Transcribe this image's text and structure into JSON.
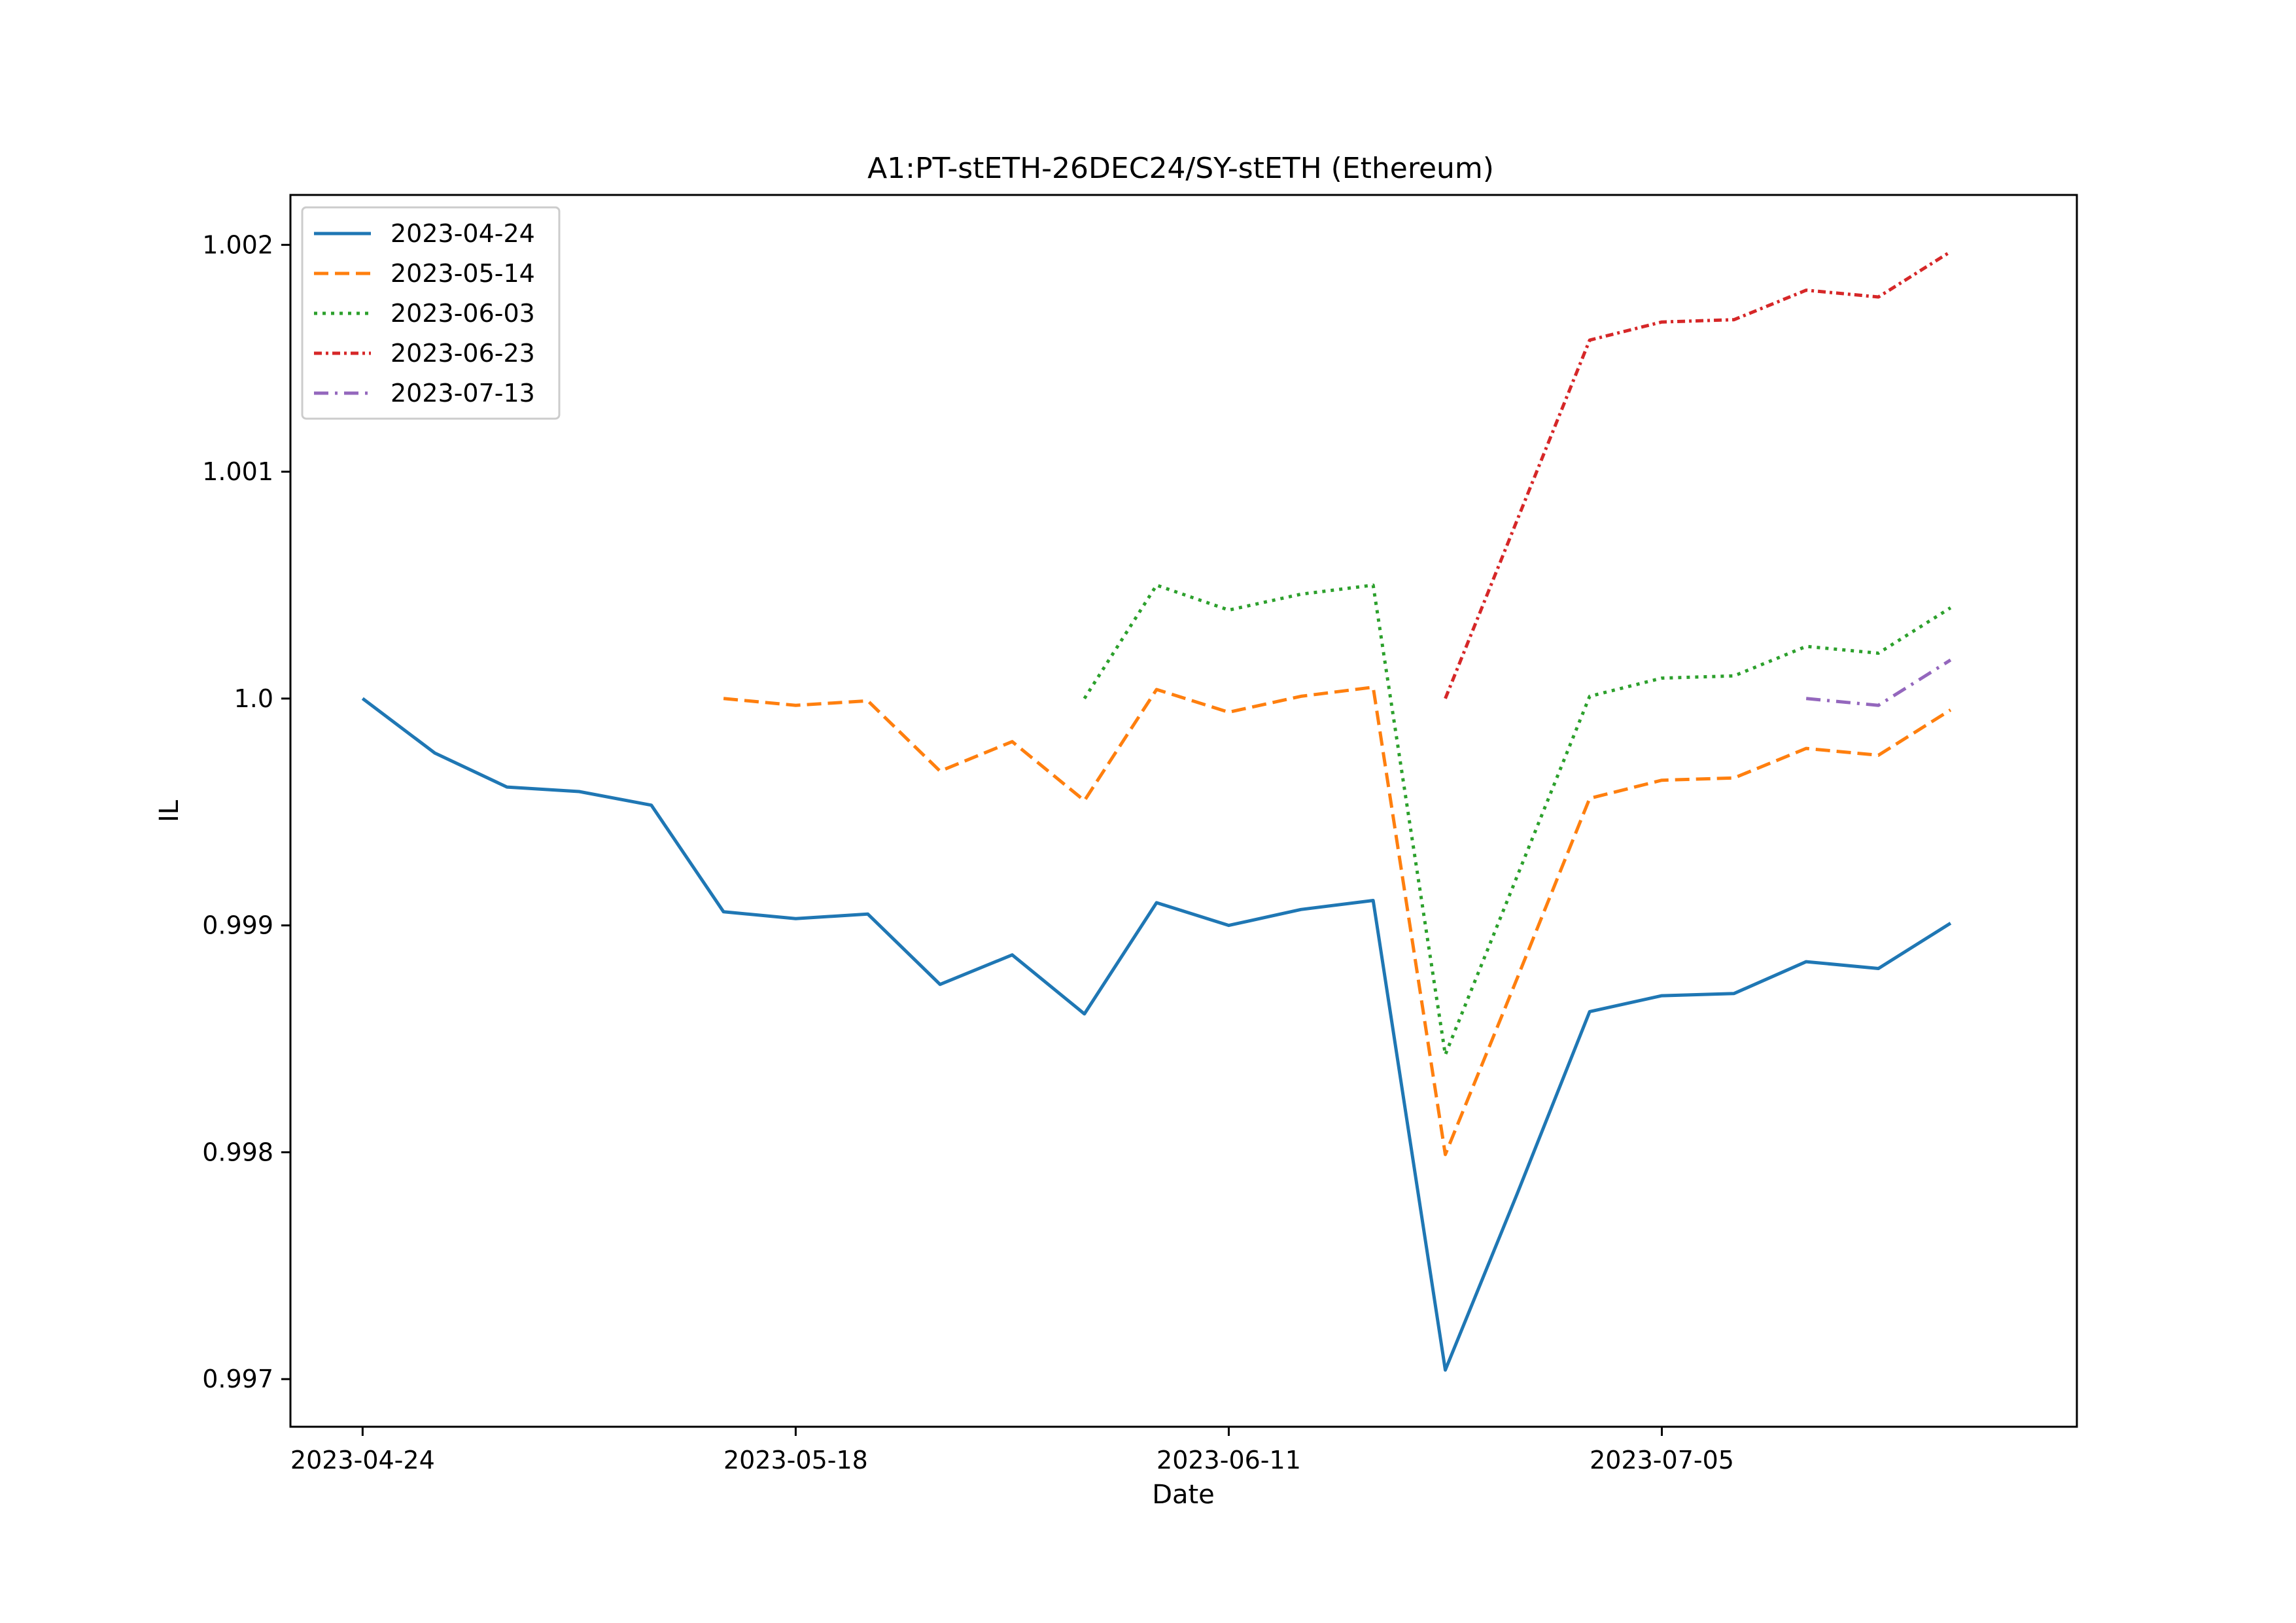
{
  "chart_data": {
    "type": "line",
    "title": "A1:PT-stETH-26DEC24/SY-stETH (Ethereum)",
    "xlabel": "Date",
    "ylabel": "IL",
    "x_dates": [
      "2023-04-24",
      "2023-04-28",
      "2023-05-02",
      "2023-05-06",
      "2023-05-10",
      "2023-05-14",
      "2023-05-18",
      "2023-05-22",
      "2023-05-26",
      "2023-05-30",
      "2023-06-03",
      "2023-06-07",
      "2023-06-11",
      "2023-06-15",
      "2023-06-19",
      "2023-06-23",
      "2023-06-27",
      "2023-07-01",
      "2023-07-05",
      "2023-07-09",
      "2023-07-13",
      "2023-07-17",
      "2023-07-21"
    ],
    "x_ticks": [
      "2023-04-24",
      "2023-05-18",
      "2023-06-11",
      "2023-07-05"
    ],
    "xlim": [
      "2023-04-20",
      "2023-07-28"
    ],
    "ylim": [
      0.99679,
      1.00222
    ],
    "y_ticks": [
      0.997,
      0.998,
      0.999,
      1.0,
      1.001,
      1.002
    ],
    "y_tick_labels": [
      "0.997",
      "0.998",
      "0.999",
      "1.0",
      "1.001",
      "1.002"
    ],
    "grid": false,
    "legend_position": "top-left",
    "series": [
      {
        "name": "2023-04-24",
        "color": "#1f77b4",
        "dash": "solid",
        "x": [
          "2023-04-24",
          "2023-04-28",
          "2023-05-02",
          "2023-05-06",
          "2023-05-10",
          "2023-05-14",
          "2023-05-18",
          "2023-05-22",
          "2023-05-26",
          "2023-05-30",
          "2023-06-03",
          "2023-06-07",
          "2023-06-11",
          "2023-06-15",
          "2023-06-19",
          "2023-06-23",
          "2023-06-27",
          "2023-07-01",
          "2023-07-05",
          "2023-07-09",
          "2023-07-13",
          "2023-07-17",
          "2023-07-21"
        ],
        "values": [
          1.0,
          0.99976,
          0.99961,
          0.99959,
          0.99953,
          0.99906,
          0.99903,
          0.99905,
          0.99874,
          0.99887,
          0.99861,
          0.9991,
          0.999,
          0.99907,
          0.99911,
          0.99704,
          0.99782,
          0.99862,
          0.99869,
          0.9987,
          0.99884,
          0.99881,
          0.99901
        ]
      },
      {
        "name": "2023-05-14",
        "color": "#ff7f0e",
        "dash": "dashed",
        "x": [
          "2023-05-14",
          "2023-05-18",
          "2023-05-22",
          "2023-05-26",
          "2023-05-30",
          "2023-06-03",
          "2023-06-07",
          "2023-06-11",
          "2023-06-15",
          "2023-06-19",
          "2023-06-23",
          "2023-06-27",
          "2023-07-01",
          "2023-07-05",
          "2023-07-09",
          "2023-07-13",
          "2023-07-17",
          "2023-07-21"
        ],
        "values": [
          1.0,
          0.99997,
          0.99999,
          0.99968,
          0.99981,
          0.99955,
          1.00004,
          0.99994,
          1.00001,
          1.00005,
          0.99799,
          0.99877,
          0.99956,
          0.99964,
          0.99965,
          0.99978,
          0.99975,
          0.99995
        ]
      },
      {
        "name": "2023-06-03",
        "color": "#2ca02c",
        "dash": "dotted",
        "x": [
          "2023-06-03",
          "2023-06-07",
          "2023-06-11",
          "2023-06-15",
          "2023-06-19",
          "2023-06-23",
          "2023-06-27",
          "2023-07-01",
          "2023-07-05",
          "2023-07-09",
          "2023-07-13",
          "2023-07-17",
          "2023-07-21"
        ],
        "values": [
          1.0,
          1.0005,
          1.00039,
          1.00046,
          1.0005,
          0.99843,
          0.99922,
          1.00001,
          1.00009,
          1.0001,
          1.00023,
          1.0002,
          1.0004
        ]
      },
      {
        "name": "2023-06-23",
        "color": "#d62728",
        "dash": "dashdot-dense",
        "x": [
          "2023-06-23",
          "2023-06-27",
          "2023-07-01",
          "2023-07-05",
          "2023-07-09",
          "2023-07-13",
          "2023-07-17",
          "2023-07-21"
        ],
        "values": [
          1.0,
          1.00079,
          1.00158,
          1.00166,
          1.00167,
          1.0018,
          1.00177,
          1.00197
        ]
      },
      {
        "name": "2023-07-13",
        "color": "#9467bd",
        "dash": "dashdot",
        "x": [
          "2023-07-13",
          "2023-07-17",
          "2023-07-21"
        ],
        "values": [
          1.0,
          0.99997,
          1.00017
        ]
      }
    ]
  }
}
